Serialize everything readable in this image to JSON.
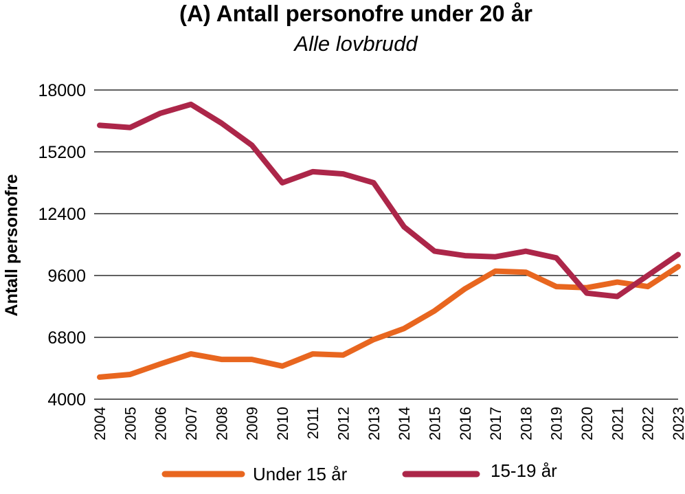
{
  "chart_data": {
    "type": "line",
    "title": "(A) Antall personofre under 20 år",
    "subtitle": "Alle lovbrudd",
    "xlabel": "",
    "ylabel": "Antall personofre",
    "ylim": [
      4000,
      18000
    ],
    "yticks": [
      "4000",
      "6800",
      "9600",
      "12400",
      "15200",
      "18000"
    ],
    "categories": [
      "2004",
      "2005",
      "2006",
      "2007",
      "2008",
      "2009",
      "2010",
      "2011",
      "2012",
      "2013",
      "2014",
      "2015",
      "2016",
      "2017",
      "2018",
      "2019",
      "2020",
      "2021",
      "2022",
      "2023"
    ],
    "grid": true,
    "legend_position": "bottom",
    "series": [
      {
        "name": "Under 15 år",
        "color": "#e8661f",
        "values": [
          5000,
          5120,
          5600,
          6050,
          5800,
          5800,
          5500,
          6050,
          6000,
          6700,
          7200,
          8000,
          9000,
          9800,
          9750,
          9100,
          9050,
          9300,
          9100,
          10000
        ]
      },
      {
        "name": "15-19 år",
        "color": "#ac2649",
        "values": [
          16400,
          16300,
          16950,
          17350,
          16500,
          15500,
          13800,
          14300,
          14200,
          13800,
          11800,
          10700,
          10500,
          10450,
          10700,
          10400,
          8800,
          8650,
          9600,
          10550
        ]
      }
    ]
  }
}
